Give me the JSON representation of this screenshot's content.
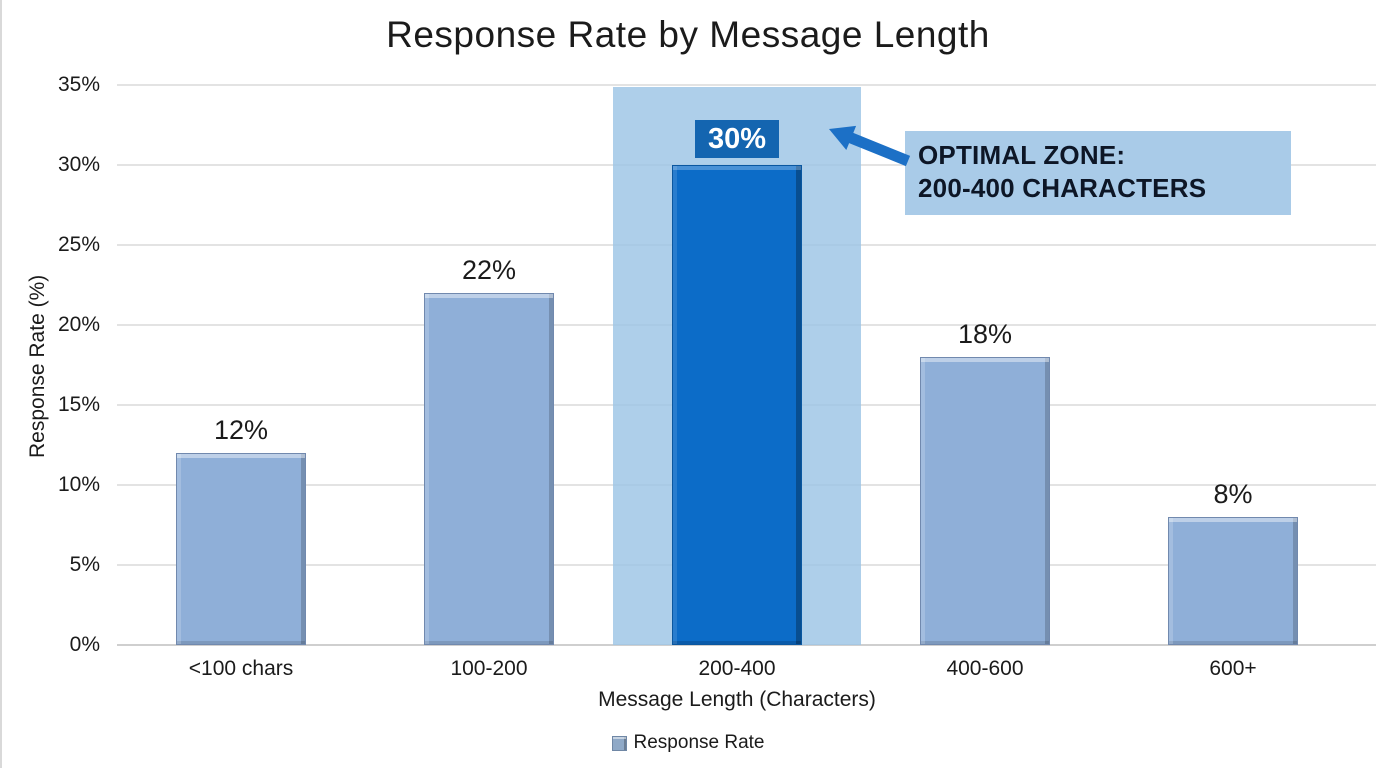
{
  "chart_data": {
    "type": "bar",
    "title": "Response Rate by Message Length",
    "xlabel": "Message Length (Characters)",
    "ylabel": "Response Rate (%)",
    "categories": [
      "<100 chars",
      "100-200",
      "200-400",
      "400-600",
      "600+"
    ],
    "values": [
      12,
      22,
      30,
      18,
      8
    ],
    "data_labels": [
      "12%",
      "22%",
      "30%",
      "18%",
      "8%"
    ],
    "highlighted_index": 2,
    "ylim": [
      0,
      35
    ],
    "ytick_step": 5,
    "yticks_top_to_bottom": [
      "35%",
      "30%",
      "25%",
      "20%",
      "15%",
      "10%",
      "5%",
      "0%"
    ],
    "grid": "horizontal",
    "legend": {
      "position": "bottom",
      "items": [
        {
          "label": "Response Rate",
          "color": "#8fafd8"
        }
      ]
    },
    "annotation": {
      "line1": "OPTIMAL ZONE:",
      "line2": "200-400 CHARACTERS",
      "box_bg": "#a9cbe8",
      "text_color": "#0d1626",
      "arrow_color": "#1c70c6"
    },
    "colors": {
      "bar": "#8fafd8",
      "bar_highlight": "#0c6cc8",
      "zone_band": "#9cc4e5",
      "value_box_bg": "#1465b0",
      "value_box_text": "#ffffff",
      "gridline": "#e3e3e3",
      "axis_line": "#cfcfcf",
      "text": "#1b1b1b"
    }
  }
}
